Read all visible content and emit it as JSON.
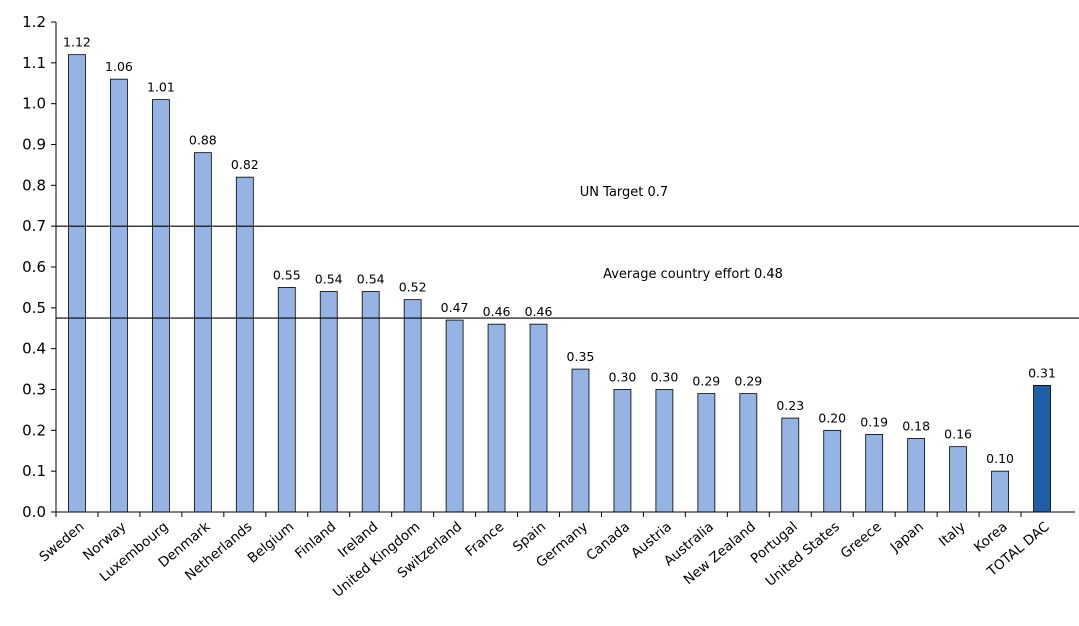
{
  "chart_data": {
    "type": "bar",
    "title": "",
    "xlabel": "",
    "ylabel": "",
    "ylim": [
      0,
      1.2
    ],
    "y_ticks": [
      "0.0",
      "0.1",
      "0.2",
      "0.3",
      "0.4",
      "0.5",
      "0.6",
      "0.7",
      "0.8",
      "0.9",
      "1.0",
      "1.1",
      "1.2"
    ],
    "grid": false,
    "categories": [
      "Sweden",
      "Norway",
      "Luxembourg",
      "Denmark",
      "Netherlands",
      "Belgium",
      "Finland",
      "Ireland",
      "United Kingdom",
      "Switzerland",
      "France",
      "Spain",
      "Germany",
      "Canada",
      "Austria",
      "Australia",
      "New Zealand",
      "Portugal",
      "United States",
      "Greece",
      "Japan",
      "Italy",
      "Korea",
      "TOTAL DAC"
    ],
    "values": [
      1.12,
      1.06,
      1.01,
      0.88,
      0.82,
      0.55,
      0.54,
      0.54,
      0.52,
      0.47,
      0.46,
      0.46,
      0.35,
      0.3,
      0.3,
      0.29,
      0.29,
      0.23,
      0.2,
      0.19,
      0.18,
      0.16,
      0.1,
      0.31
    ],
    "value_labels": [
      "1.12",
      "1.06",
      "1.01",
      "0.88",
      "0.82",
      "0.55",
      "0.54",
      "0.54",
      "0.52",
      "0.47",
      "0.46",
      "0.46",
      "0.35",
      "0.30",
      "0.30",
      "0.29",
      "0.29",
      "0.23",
      "0.20",
      "0.19",
      "0.18",
      "0.16",
      "0.10",
      "0.31"
    ],
    "colors": {
      "bar": "#95b3e3",
      "highlight": "#1f5fa8",
      "stroke": "#000000"
    },
    "highlight_category": "TOTAL DAC",
    "reference_lines": [
      {
        "value": 0.7,
        "label": "UN Target 0.7"
      },
      {
        "value": 0.475,
        "label": "Average country effort 0.48"
      }
    ]
  }
}
